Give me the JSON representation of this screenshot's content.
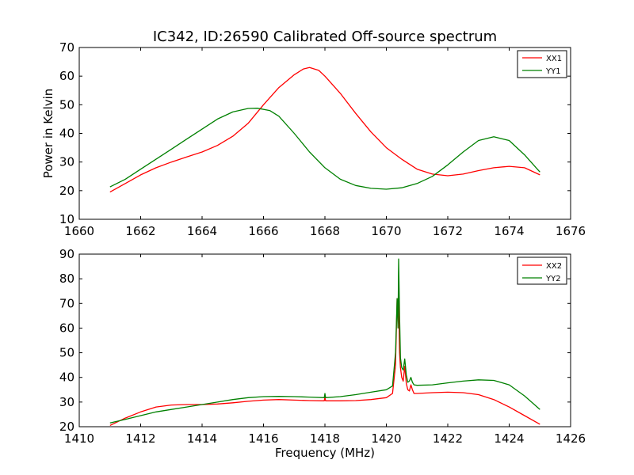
{
  "title": "IC342, ID:26590 Calibrated Off-source spectrum",
  "chart_data": [
    {
      "type": "line",
      "title": "IC342, ID:26590 Calibrated Off-source spectrum",
      "xlabel": "",
      "ylabel": "Power in Kelvin",
      "xlim": [
        1660,
        1676
      ],
      "ylim": [
        10,
        70
      ],
      "xticks": [
        "1660",
        "1662",
        "1664",
        "1666",
        "1668",
        "1670",
        "1672",
        "1674",
        "1676"
      ],
      "yticks": [
        "10",
        "20",
        "30",
        "40",
        "50",
        "60",
        "70"
      ],
      "legend_position": "top-right",
      "series": [
        {
          "name": "XX1",
          "color": "#ff0000",
          "x": [
            1661,
            1661.5,
            1662,
            1662.5,
            1663,
            1663.5,
            1664,
            1664.5,
            1665,
            1665.5,
            1666,
            1666.5,
            1667,
            1667.3,
            1667.5,
            1667.8,
            1668,
            1668.5,
            1669,
            1669.5,
            1670,
            1670.5,
            1671,
            1671.5,
            1672,
            1672.5,
            1673,
            1673.5,
            1674,
            1674.5,
            1675
          ],
          "y": [
            19.5,
            22.5,
            25.5,
            28.0,
            30.0,
            31.8,
            33.5,
            35.8,
            39.0,
            43.5,
            50.0,
            56.0,
            60.5,
            62.5,
            63.0,
            62.0,
            60.0,
            54.0,
            47.0,
            40.5,
            35.0,
            31.0,
            27.5,
            25.8,
            25.2,
            25.8,
            27.0,
            28.0,
            28.5,
            28.0,
            25.5
          ]
        },
        {
          "name": "YY1",
          "color": "#008000",
          "x": [
            1661,
            1661.5,
            1662,
            1662.5,
            1663,
            1663.5,
            1664,
            1664.5,
            1665,
            1665.5,
            1665.8,
            1666.2,
            1666.5,
            1667,
            1667.5,
            1668,
            1668.5,
            1669,
            1669.5,
            1670,
            1670.5,
            1671,
            1671.5,
            1672,
            1672.5,
            1673,
            1673.5,
            1674,
            1674.5,
            1675
          ],
          "y": [
            21.3,
            24.0,
            27.5,
            31.0,
            34.5,
            38.0,
            41.5,
            45.0,
            47.5,
            48.7,
            48.8,
            48.0,
            46.0,
            40.0,
            33.5,
            28.0,
            24.0,
            21.8,
            20.8,
            20.5,
            21.0,
            22.5,
            25.0,
            29.0,
            33.5,
            37.5,
            38.8,
            37.5,
            32.5,
            26.5
          ]
        }
      ]
    },
    {
      "type": "line",
      "title": "",
      "xlabel": "Frequency (MHz)",
      "ylabel": "",
      "xlim": [
        1410,
        1426
      ],
      "ylim": [
        20,
        90
      ],
      "xticks": [
        "1410",
        "1412",
        "1414",
        "1416",
        "1418",
        "1420",
        "1422",
        "1424",
        "1426"
      ],
      "yticks": [
        "20",
        "30",
        "40",
        "50",
        "60",
        "70",
        "80",
        "90"
      ],
      "legend_position": "top-right",
      "series": [
        {
          "name": "XX2",
          "color": "#ff0000",
          "x": [
            1411,
            1411.5,
            1412,
            1412.5,
            1413,
            1413.5,
            1414,
            1414.5,
            1415,
            1415.5,
            1416,
            1416.5,
            1417,
            1417.5,
            1417.98,
            1418,
            1418.02,
            1418.5,
            1419,
            1419.5,
            1420,
            1420.2,
            1420.3,
            1420.35,
            1420.38,
            1420.4,
            1420.43,
            1420.46,
            1420.5,
            1420.55,
            1420.6,
            1420.65,
            1420.7,
            1420.75,
            1420.8,
            1420.85,
            1420.9,
            1421,
            1421.5,
            1422,
            1422.5,
            1423,
            1423.5,
            1424,
            1424.5,
            1425
          ],
          "y": [
            20.5,
            23.5,
            26.0,
            28.0,
            28.8,
            29.0,
            29.0,
            29.2,
            29.7,
            30.3,
            30.8,
            31.0,
            30.8,
            30.6,
            30.5,
            32.0,
            30.5,
            30.5,
            30.6,
            31.0,
            31.8,
            33.5,
            45.0,
            72.0,
            62.0,
            72.0,
            50.0,
            44.0,
            40.0,
            38.5,
            44.5,
            37.5,
            35.0,
            34.5,
            37.0,
            35.0,
            33.5,
            33.5,
            33.8,
            34.0,
            33.8,
            33.0,
            31.0,
            28.0,
            24.5,
            21.0
          ]
        },
        {
          "name": "YY2",
          "color": "#008000",
          "x": [
            1411,
            1411.5,
            1412,
            1412.5,
            1413,
            1413.5,
            1414,
            1414.5,
            1415,
            1415.5,
            1416,
            1416.5,
            1417,
            1417.5,
            1417.98,
            1418,
            1418.02,
            1418.5,
            1419,
            1419.5,
            1420,
            1420.2,
            1420.3,
            1420.35,
            1420.38,
            1420.4,
            1420.43,
            1420.46,
            1420.5,
            1420.55,
            1420.6,
            1420.65,
            1420.7,
            1420.75,
            1420.8,
            1420.85,
            1420.9,
            1421,
            1421.5,
            1422,
            1422.5,
            1423,
            1423.5,
            1424,
            1424.5,
            1425
          ],
          "y": [
            21.5,
            23.0,
            24.5,
            26.0,
            27.0,
            28.0,
            29.0,
            30.0,
            31.0,
            31.8,
            32.2,
            32.3,
            32.2,
            32.0,
            31.8,
            33.5,
            31.8,
            32.2,
            33.0,
            34.0,
            35.0,
            36.5,
            50.0,
            72.0,
            60.0,
            88.0,
            65.0,
            48.0,
            44.0,
            43.0,
            47.5,
            41.0,
            38.0,
            38.5,
            40.0,
            38.0,
            37.0,
            36.8,
            37.0,
            37.8,
            38.5,
            39.0,
            38.8,
            37.0,
            32.5,
            27.0
          ]
        }
      ]
    }
  ]
}
